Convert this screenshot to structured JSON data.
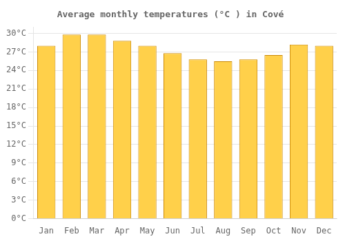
{
  "chart_data": {
    "type": "bar",
    "title": "Average monthly temperatures (°C ) in Cové",
    "categories": [
      "Jan",
      "Feb",
      "Mar",
      "Apr",
      "May",
      "Jun",
      "Jul",
      "Aug",
      "Sep",
      "Oct",
      "Nov",
      "Dec"
    ],
    "values": [
      28.0,
      29.8,
      29.8,
      28.8,
      28.0,
      26.8,
      25.8,
      25.5,
      25.8,
      26.5,
      28.2,
      28.0
    ],
    "color": "#FFD04A",
    "ylim": [
      0,
      31
    ],
    "yticks": [
      {
        "value": 0,
        "label": "0°C"
      },
      {
        "value": 3,
        "label": "3°C"
      },
      {
        "value": 6,
        "label": "6°C"
      },
      {
        "value": 9,
        "label": "9°C"
      },
      {
        "value": 12,
        "label": "12°C"
      },
      {
        "value": 15,
        "label": "15°C"
      },
      {
        "value": 18,
        "label": "18°C"
      },
      {
        "value": 21,
        "label": "21°C"
      },
      {
        "value": 24,
        "label": "24°C"
      },
      {
        "value": 27,
        "label": "27°C"
      },
      {
        "value": 30,
        "label": "30°C"
      }
    ],
    "grid": true
  }
}
